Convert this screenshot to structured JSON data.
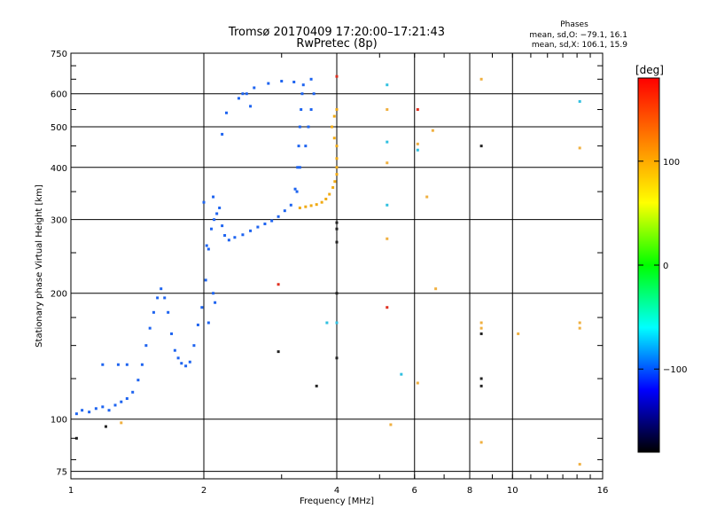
{
  "chart_data": {
    "type": "scatter",
    "title": "Tromsø 20170409 17:20:00–17:21:43",
    "subtitle": "RwPretec (8p)",
    "stats": {
      "heading": "Phases",
      "line_o": "mean, sd,O: −79.1, 16.1",
      "line_x": "mean, sd,X: 106.1, 15.9"
    },
    "xlabel": "Frequency [MHz]",
    "ylabel": "Stationary phase Virtual Height [km]",
    "x_scale": "log",
    "y_scale": "log",
    "xlim": [
      1,
      16
    ],
    "ylim": [
      72,
      750
    ],
    "x_ticks": [
      {
        "value": 1,
        "label": "1"
      },
      {
        "value": 2,
        "label": "2"
      },
      {
        "value": 4,
        "label": "4"
      },
      {
        "value": 6,
        "label": "6"
      },
      {
        "value": 8,
        "label": "8"
      },
      {
        "value": 10,
        "label": "10"
      },
      {
        "value": 16,
        "label": "16"
      }
    ],
    "y_ticks": [
      {
        "value": 75,
        "label": "75"
      },
      {
        "value": 100,
        "label": "100"
      },
      {
        "value": 200,
        "label": "200"
      },
      {
        "value": 300,
        "label": "300"
      },
      {
        "value": 400,
        "label": "400"
      },
      {
        "value": 500,
        "label": "500"
      },
      {
        "value": 600,
        "label": "600"
      },
      {
        "value": 750,
        "label": "750"
      }
    ],
    "grid": true,
    "colorbar": {
      "unit": "[deg]",
      "range": [
        -180,
        180
      ],
      "ticks": [
        {
          "value": 100,
          "label": "100"
        },
        {
          "value": 0,
          "label": "0"
        },
        {
          "value": -100,
          "label": "−100"
        }
      ],
      "colors": [
        "#ff0000",
        "#ff8000",
        "#ffff00",
        "#00ff00",
        "#00ffff",
        "#0000ff",
        "#000000"
      ]
    },
    "series": [
      {
        "mode": "O",
        "color": "#1e64f0",
        "points": [
          [
            1.03,
            103
          ],
          [
            1.06,
            105
          ],
          [
            1.1,
            104
          ],
          [
            1.14,
            106
          ],
          [
            1.18,
            107
          ],
          [
            1.22,
            105
          ],
          [
            1.26,
            108
          ],
          [
            1.3,
            110
          ],
          [
            1.34,
            112
          ],
          [
            1.38,
            116
          ],
          [
            1.42,
            124
          ],
          [
            1.45,
            135
          ],
          [
            1.48,
            150
          ],
          [
            1.51,
            165
          ],
          [
            1.54,
            180
          ],
          [
            1.57,
            195
          ],
          [
            1.6,
            205
          ],
          [
            1.63,
            195
          ],
          [
            1.66,
            180
          ],
          [
            1.69,
            160
          ],
          [
            1.72,
            146
          ],
          [
            1.75,
            140
          ],
          [
            1.78,
            136
          ],
          [
            1.82,
            134
          ],
          [
            1.86,
            137
          ],
          [
            1.9,
            150
          ],
          [
            1.94,
            168
          ],
          [
            1.98,
            185
          ],
          [
            2.02,
            215
          ],
          [
            2.05,
            255
          ],
          [
            2.08,
            285
          ],
          [
            2.11,
            300
          ],
          [
            2.14,
            310
          ],
          [
            2.17,
            320
          ],
          [
            2.2,
            290
          ],
          [
            2.23,
            275
          ],
          [
            2.28,
            268
          ],
          [
            2.35,
            272
          ],
          [
            2.45,
            276
          ],
          [
            2.55,
            282
          ],
          [
            2.65,
            288
          ],
          [
            2.75,
            293
          ],
          [
            2.85,
            298
          ],
          [
            2.95,
            305
          ],
          [
            3.05,
            315
          ],
          [
            3.15,
            325
          ],
          [
            3.22,
            355
          ],
          [
            3.26,
            400
          ],
          [
            3.28,
            450
          ],
          [
            3.3,
            500
          ],
          [
            3.32,
            550
          ],
          [
            3.34,
            600
          ],
          [
            3.36,
            630
          ],
          [
            3.2,
            640
          ],
          [
            3.0,
            643
          ],
          [
            2.8,
            635
          ],
          [
            2.6,
            620
          ],
          [
            2.45,
            600
          ],
          [
            2.4,
            585
          ],
          [
            2.55,
            560
          ],
          [
            3.5,
            650
          ],
          [
            3.55,
            600
          ],
          [
            3.5,
            550
          ],
          [
            3.45,
            500
          ],
          [
            3.4,
            450
          ],
          [
            3.3,
            400
          ],
          [
            3.25,
            350
          ],
          [
            1.28,
            135
          ],
          [
            1.34,
            135
          ],
          [
            1.18,
            135
          ],
          [
            2.1,
            200
          ],
          [
            2.12,
            190
          ],
          [
            2.05,
            170
          ],
          [
            2.0,
            330
          ],
          [
            2.03,
            260
          ],
          [
            2.1,
            340
          ],
          [
            2.25,
            540
          ],
          [
            2.2,
            480
          ],
          [
            2.5,
            600
          ]
        ]
      },
      {
        "mode": "X",
        "color": "#f0aa14",
        "points": [
          [
            3.3,
            320
          ],
          [
            3.4,
            322
          ],
          [
            3.5,
            324
          ],
          [
            3.6,
            326
          ],
          [
            3.7,
            330
          ],
          [
            3.78,
            336
          ],
          [
            3.85,
            345
          ],
          [
            3.92,
            358
          ],
          [
            3.96,
            370
          ],
          [
            4.0,
            385
          ],
          [
            4.0,
            400
          ],
          [
            4.0,
            420
          ],
          [
            4.0,
            450
          ],
          [
            3.95,
            470
          ],
          [
            3.9,
            500
          ],
          [
            3.95,
            530
          ],
          [
            4.0,
            550
          ]
        ]
      },
      {
        "mode": "scatter",
        "color": "#222222",
        "points": [
          [
            8.5,
            450
          ],
          [
            8.5,
            160
          ],
          [
            8.5,
            125
          ],
          [
            8.5,
            120
          ],
          [
            2.95,
            145
          ],
          [
            3.6,
            120
          ],
          [
            4.0,
            295
          ],
          [
            4.0,
            285
          ],
          [
            4.0,
            265
          ],
          [
            4.0,
            200
          ],
          [
            4.0,
            140
          ],
          [
            1.2,
            96
          ],
          [
            1.03,
            90
          ]
        ]
      },
      {
        "mode": "scatter",
        "color": "#e03020",
        "points": [
          [
            6.1,
            550
          ],
          [
            5.2,
            185
          ],
          [
            2.95,
            210
          ],
          [
            4.0,
            660
          ]
        ]
      },
      {
        "mode": "scatter",
        "color": "#f0b040",
        "points": [
          [
            8.5,
            650
          ],
          [
            5.2,
            550
          ],
          [
            6.1,
            455
          ],
          [
            6.6,
            490
          ],
          [
            5.2,
            410
          ],
          [
            6.4,
            340
          ],
          [
            5.2,
            270
          ],
          [
            6.7,
            205
          ],
          [
            8.5,
            170
          ],
          [
            8.5,
            165
          ],
          [
            10.3,
            160
          ],
          [
            14.2,
            170
          ],
          [
            14.2,
            165
          ],
          [
            14.2,
            445
          ],
          [
            8.5,
            88
          ],
          [
            14.2,
            78
          ],
          [
            5.3,
            97
          ],
          [
            6.1,
            122
          ],
          [
            1.3,
            98
          ]
        ]
      },
      {
        "mode": "scatter",
        "color": "#30c0e0",
        "points": [
          [
            5.2,
            630
          ],
          [
            5.2,
            460
          ],
          [
            5.2,
            325
          ],
          [
            5.6,
            128
          ],
          [
            4.0,
            170
          ],
          [
            3.8,
            170
          ],
          [
            14.2,
            575
          ],
          [
            6.1,
            440
          ]
        ]
      }
    ]
  }
}
